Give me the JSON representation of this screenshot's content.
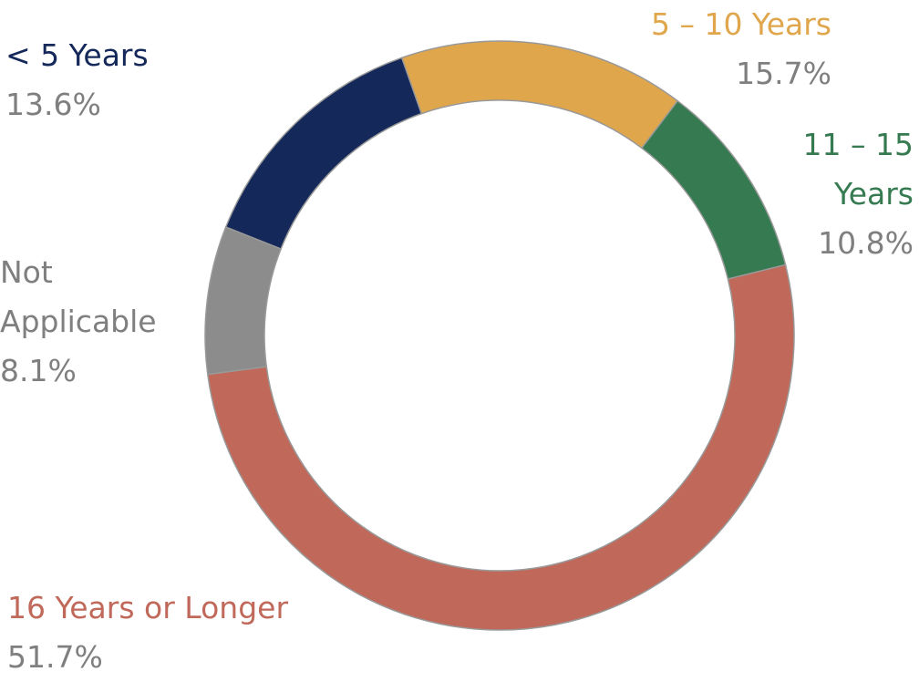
{
  "chart_data": {
    "type": "donut",
    "categories": [
      "< 5 Years",
      "5 – 10 Years",
      "11 – 15 Years",
      "16 Years or Longer",
      "Not Applicable"
    ],
    "values": [
      13.6,
      15.7,
      10.8,
      51.7,
      8.1
    ],
    "value_labels": [
      "13.6%",
      "15.7%",
      "10.8%",
      "51.7%",
      "8.1%"
    ],
    "colors": [
      "#14285a",
      "#e0a64b",
      "#357a50",
      "#c0695a",
      "#8c8c8c"
    ]
  }
}
